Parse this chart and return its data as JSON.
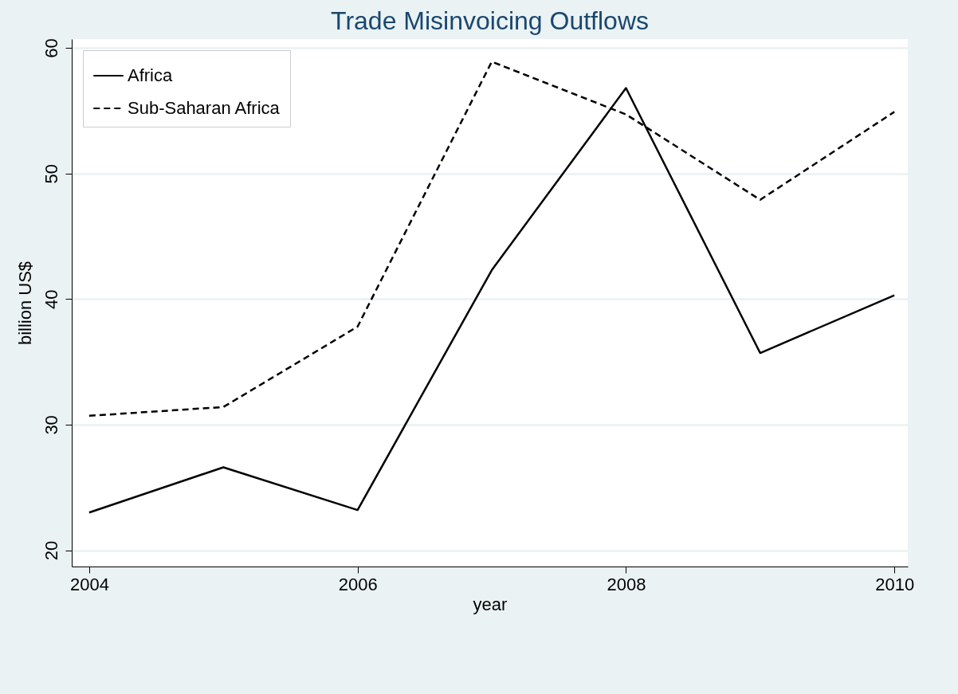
{
  "chart_data": {
    "type": "line",
    "title": "Trade Misinvoicing Outflows",
    "xlabel": "year",
    "ylabel": "billion US$",
    "x": [
      2004,
      2005,
      2006,
      2007,
      2008,
      2009,
      2010
    ],
    "series": [
      {
        "name": "Africa",
        "color": "#000000",
        "line_style": "solid",
        "values": [
          23.0,
          26.6,
          23.2,
          42.3,
          56.8,
          35.7,
          40.3
        ]
      },
      {
        "name": "Sub-Saharan Africa",
        "color": "#000000",
        "line_style": "dashed",
        "values": [
          30.7,
          31.4,
          37.8,
          58.9,
          54.7,
          47.9,
          54.9
        ]
      }
    ],
    "xlim": [
      2003.87,
      2010.1
    ],
    "xticks": [
      2004,
      2006,
      2008,
      2010
    ],
    "ylim": [
      18.7,
      60.7
    ],
    "yticks": [
      20,
      30,
      40,
      50,
      60
    ],
    "grid": "y",
    "legend": "top left",
    "marker": "none"
  }
}
